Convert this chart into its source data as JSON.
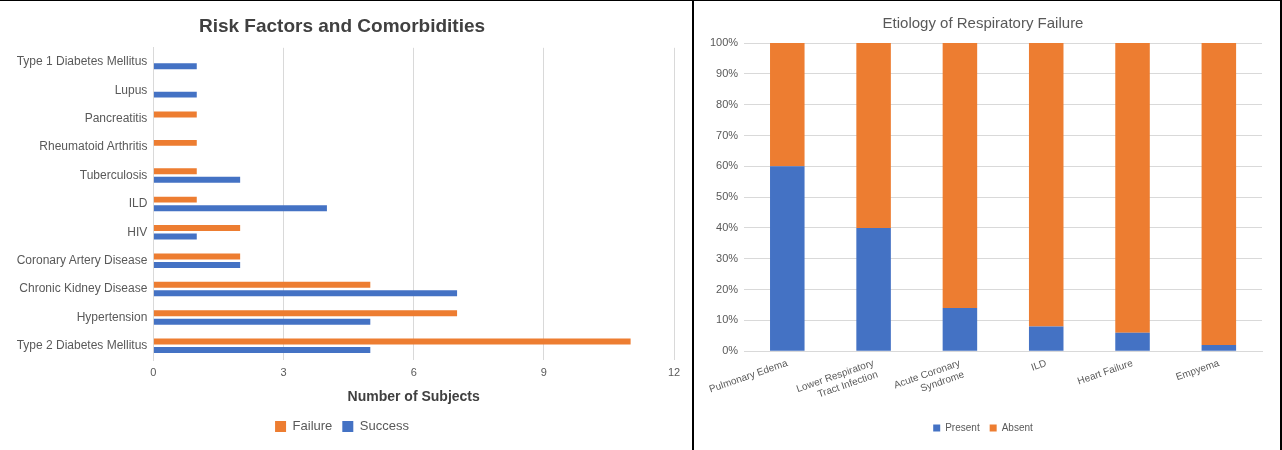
{
  "chart_data": [
    {
      "type": "bar",
      "orientation": "horizontal",
      "title": "Risk Factors and Comorbidities",
      "xlabel": "Number of Subjects",
      "categories": [
        "Type 1 Diabetes Mellitus",
        "Lupus",
        "Pancreatitis",
        "Rheumatoid Arthritis",
        "Tuberculosis",
        "ILD",
        "HIV",
        "Coronary Artery Disease",
        "Chronic Kidney Disease",
        "Hypertension",
        "Type 2 Diabetes Mellitus"
      ],
      "series": [
        {
          "name": "Failure",
          "color": "#ed7d31",
          "values": [
            0,
            0,
            1,
            1,
            1,
            1,
            2,
            2,
            5,
            7,
            11
          ]
        },
        {
          "name": "Success",
          "color": "#4472c4",
          "values": [
            1,
            1,
            0,
            0,
            2,
            4,
            1,
            2,
            7,
            5,
            5
          ]
        }
      ],
      "xlim": [
        0,
        12
      ],
      "xticks": [
        0,
        3,
        6,
        9,
        12
      ],
      "grid": "x",
      "legend": "bottom"
    },
    {
      "type": "bar",
      "stacked": true,
      "title": "Etiology of Respiratory Failure",
      "categories": [
        "Pulmonary Edema",
        "Lower Respiratory Tract Infection",
        "Acute Coronary Syndrome",
        "ILD",
        "Heart Failure",
        "Empyema"
      ],
      "series": [
        {
          "name": "Present",
          "color": "#4472c4",
          "values": [
            60,
            40,
            14,
            8,
            6,
            2
          ]
        },
        {
          "name": "Absent",
          "color": "#ed7d31",
          "values": [
            40,
            60,
            86,
            92,
            94,
            98
          ]
        }
      ],
      "ylim": [
        0,
        100
      ],
      "yticks": [
        {
          "value": 0,
          "label": "0%"
        },
        {
          "value": 10,
          "label": "10%"
        },
        {
          "value": 20,
          "label": "20%"
        },
        {
          "value": 30,
          "label": "30%"
        },
        {
          "value": 40,
          "label": "40%"
        },
        {
          "value": 50,
          "label": "50%"
        },
        {
          "value": 60,
          "label": "60%"
        },
        {
          "value": 70,
          "label": "70%"
        },
        {
          "value": 80,
          "label": "80%"
        },
        {
          "value": 90,
          "label": "90%"
        },
        {
          "value": 100,
          "label": "100%"
        }
      ],
      "grid": "y",
      "legend": "bottom"
    }
  ]
}
